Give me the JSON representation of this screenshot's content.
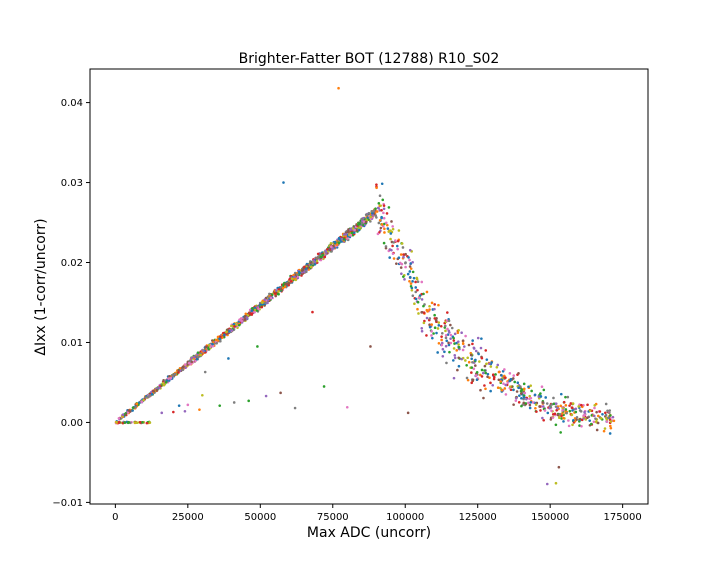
{
  "chart_data": {
    "type": "scatter",
    "title": "Brighter-Fatter BOT (12788) R10_S02",
    "xlabel": "Max ADC (uncorr)",
    "ylabel": "ΔIxx (1-corr/uncorr)",
    "xlim": [
      -8750,
      183750
    ],
    "ylim": [
      -0.0102,
      0.0442
    ],
    "xticks": [
      0,
      25000,
      50000,
      75000,
      100000,
      125000,
      150000,
      175000
    ],
    "xtick_labels": [
      "0",
      "25000",
      "50000",
      "75000",
      "100000",
      "125000",
      "150000",
      "175000"
    ],
    "yticks": [
      -0.01,
      0.0,
      0.01,
      0.02,
      0.03,
      0.04
    ],
    "ytick_labels": [
      "−0.01",
      "0.00",
      "0.01",
      "0.02",
      "0.03",
      "0.04"
    ],
    "grid": false,
    "legend": "none",
    "series_colors": [
      "#1f77b4",
      "#ff7f0e",
      "#2ca02c",
      "#d62728",
      "#9467bd",
      "#8c564b",
      "#e377c2",
      "#7f7f7f",
      "#bcbd22"
    ],
    "rising_branch": {
      "x_start": 0,
      "x_end": 90000,
      "slope_per_adc": 2.93e-07,
      "scatter": 0.0004
    },
    "falling_branch": [
      {
        "x": 90000,
        "y": 0.027
      },
      {
        "x": 100000,
        "y": 0.02
      },
      {
        "x": 110000,
        "y": 0.012
      },
      {
        "x": 125000,
        "y": 0.007
      },
      {
        "x": 140000,
        "y": 0.004
      },
      {
        "x": 150000,
        "y": 0.0015
      },
      {
        "x": 160000,
        "y": 0.001
      },
      {
        "x": 172000,
        "y": 0.0005
      }
    ],
    "low_baseline": {
      "x_start": 0,
      "x_end": 12000,
      "y": 0.0
    },
    "outliers": [
      {
        "x": 77000,
        "y": 0.0418
      },
      {
        "x": 58000,
        "y": 0.03
      },
      {
        "x": 68000,
        "y": 0.0138
      },
      {
        "x": 49000,
        "y": 0.0095
      },
      {
        "x": 39000,
        "y": 0.008
      },
      {
        "x": 31000,
        "y": 0.0063
      },
      {
        "x": 72000,
        "y": 0.0045
      },
      {
        "x": 57000,
        "y": 0.0037
      },
      {
        "x": 52000,
        "y": 0.0033
      },
      {
        "x": 30000,
        "y": 0.0034
      },
      {
        "x": 41000,
        "y": 0.0025
      },
      {
        "x": 46000,
        "y": 0.0027
      },
      {
        "x": 25000,
        "y": 0.0022
      },
      {
        "x": 22000,
        "y": 0.0021
      },
      {
        "x": 36000,
        "y": 0.0021
      },
      {
        "x": 62000,
        "y": 0.0018
      },
      {
        "x": 80000,
        "y": 0.0019
      },
      {
        "x": 29000,
        "y": 0.0016
      },
      {
        "x": 24000,
        "y": 0.0014
      },
      {
        "x": 20000,
        "y": 0.0013
      },
      {
        "x": 16000,
        "y": 0.0012
      },
      {
        "x": 101000,
        "y": 0.0012
      },
      {
        "x": 88000,
        "y": 0.0095
      },
      {
        "x": 153000,
        "y": -0.0056
      },
      {
        "x": 149000,
        "y": -0.0077
      },
      {
        "x": 152000,
        "y": -0.0076
      }
    ]
  }
}
